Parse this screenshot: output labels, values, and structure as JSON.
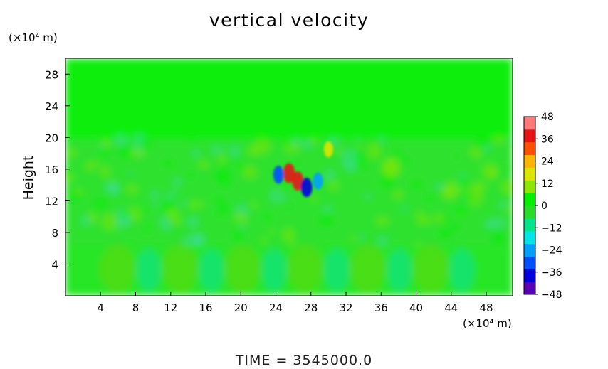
{
  "chart_data": {
    "type": "heatmap",
    "title": "vertical velocity",
    "xlabel": "",
    "ylabel": "Height",
    "x_unit": "(×10⁴ m)",
    "y_unit": "(×10⁴ m)",
    "xlim": [
      0,
      51
    ],
    "ylim": [
      0,
      30
    ],
    "x_ticks": [
      4,
      8,
      12,
      16,
      20,
      24,
      28,
      32,
      36,
      40,
      44,
      48
    ],
    "y_ticks": [
      4,
      8,
      12,
      16,
      20,
      24,
      28
    ],
    "colorbar": {
      "ticks": [
        48,
        36,
        24,
        12,
        0,
        -12,
        -24,
        -36,
        -48
      ],
      "range": [
        -48,
        48
      ],
      "colors": [
        "#5a00b4",
        "#0000dc",
        "#0050ff",
        "#00a0ff",
        "#00e6e6",
        "#00e68c",
        "#28dc28",
        "#00f000",
        "#8ce600",
        "#dce600",
        "#ffb400",
        "#ff5000",
        "#e61414",
        "#ff7878"
      ]
    },
    "features": [
      {
        "x": 25.5,
        "y": 15.5,
        "value": 40
      },
      {
        "x": 26.5,
        "y": 14.5,
        "value": 36
      },
      {
        "x": 24.3,
        "y": 15.3,
        "value": -30
      },
      {
        "x": 27.5,
        "y": 13.7,
        "value": -36
      },
      {
        "x": 28.8,
        "y": 14.5,
        "value": -24
      },
      {
        "x": 30,
        "y": 18.5,
        "value": 18
      }
    ],
    "footer": "TIME  =  3545000.0"
  }
}
